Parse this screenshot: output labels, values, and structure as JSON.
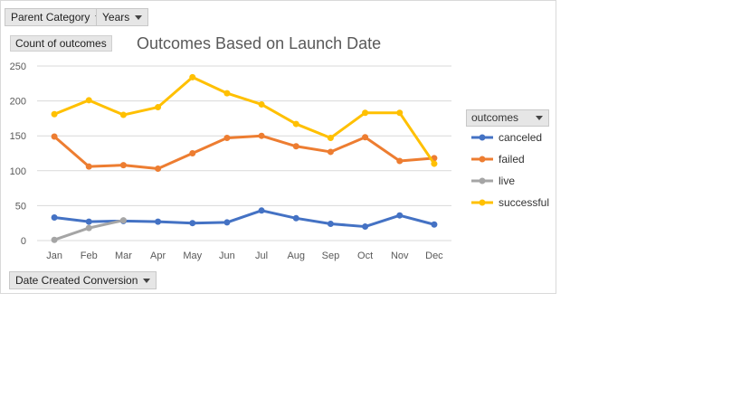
{
  "filters": {
    "parent_category": "Parent Category",
    "years": "Years",
    "date_created": "Date Created Conversion"
  },
  "value_field": "Count of outcomes",
  "legend_field": "outcomes",
  "colors": {
    "canceled": "#4472c4",
    "failed": "#ed7d31",
    "live": "#a5a5a5",
    "successful": "#ffc000",
    "grid": "#d9d9d9"
  },
  "chart_data": {
    "type": "line",
    "title": "Outcomes Based on Launch Date",
    "xlabel": "",
    "ylabel": "",
    "categories": [
      "Jan",
      "Feb",
      "Mar",
      "Apr",
      "May",
      "Jun",
      "Jul",
      "Aug",
      "Sep",
      "Oct",
      "Nov",
      "Dec"
    ],
    "ylim": [
      0,
      250
    ],
    "yticks": [
      0,
      50,
      100,
      150,
      200,
      250
    ],
    "grid": true,
    "legend_position": "right",
    "series": [
      {
        "name": "canceled",
        "values": [
          33,
          27,
          28,
          27,
          25,
          26,
          43,
          32,
          24,
          20,
          36,
          23
        ]
      },
      {
        "name": "failed",
        "values": [
          149,
          106,
          108,
          103,
          125,
          147,
          150,
          135,
          127,
          148,
          114,
          118
        ]
      },
      {
        "name": "live",
        "values": [
          1,
          18,
          29,
          null,
          null,
          null,
          null,
          null,
          null,
          null,
          null,
          null
        ]
      },
      {
        "name": "successful",
        "values": [
          181,
          201,
          180,
          191,
          234,
          211,
          195,
          167,
          147,
          183,
          183,
          110
        ]
      }
    ]
  }
}
